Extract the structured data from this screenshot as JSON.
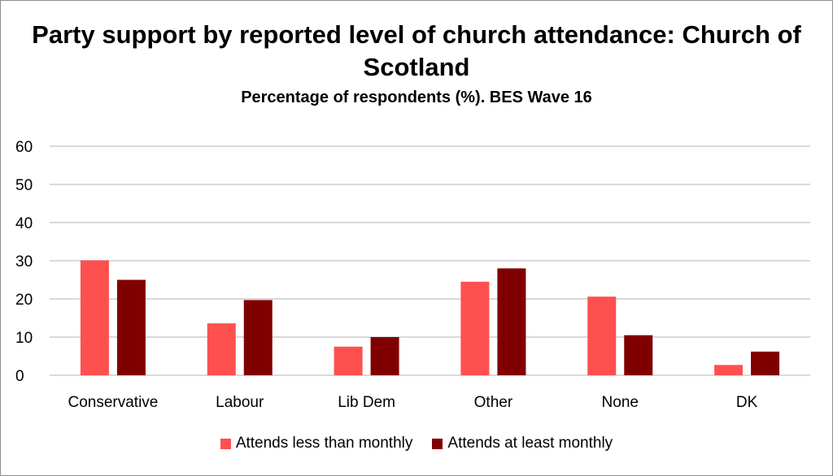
{
  "chart_data": {
    "type": "bar",
    "title": "Party support by reported level of church attendance: Church of Scotland",
    "subtitle": "Percentage of respondents (%). BES Wave 16",
    "categories": [
      "Conservative",
      "Labour",
      "Lib Dem",
      "Other",
      "None",
      "DK"
    ],
    "series": [
      {
        "name": "Attends less than monthly",
        "color": "#ff5050",
        "values": [
          30.1,
          13.6,
          7.5,
          24.5,
          20.6,
          2.7
        ]
      },
      {
        "name": "Attends at least monthly",
        "color": "#800000",
        "values": [
          25.0,
          19.7,
          10.0,
          28.0,
          10.5,
          6.2
        ]
      }
    ],
    "ylim": [
      0,
      60
    ],
    "yticks": [
      "0",
      "10",
      "20",
      "30",
      "40",
      "50",
      "60"
    ],
    "grid": true,
    "legend": "bottom"
  }
}
